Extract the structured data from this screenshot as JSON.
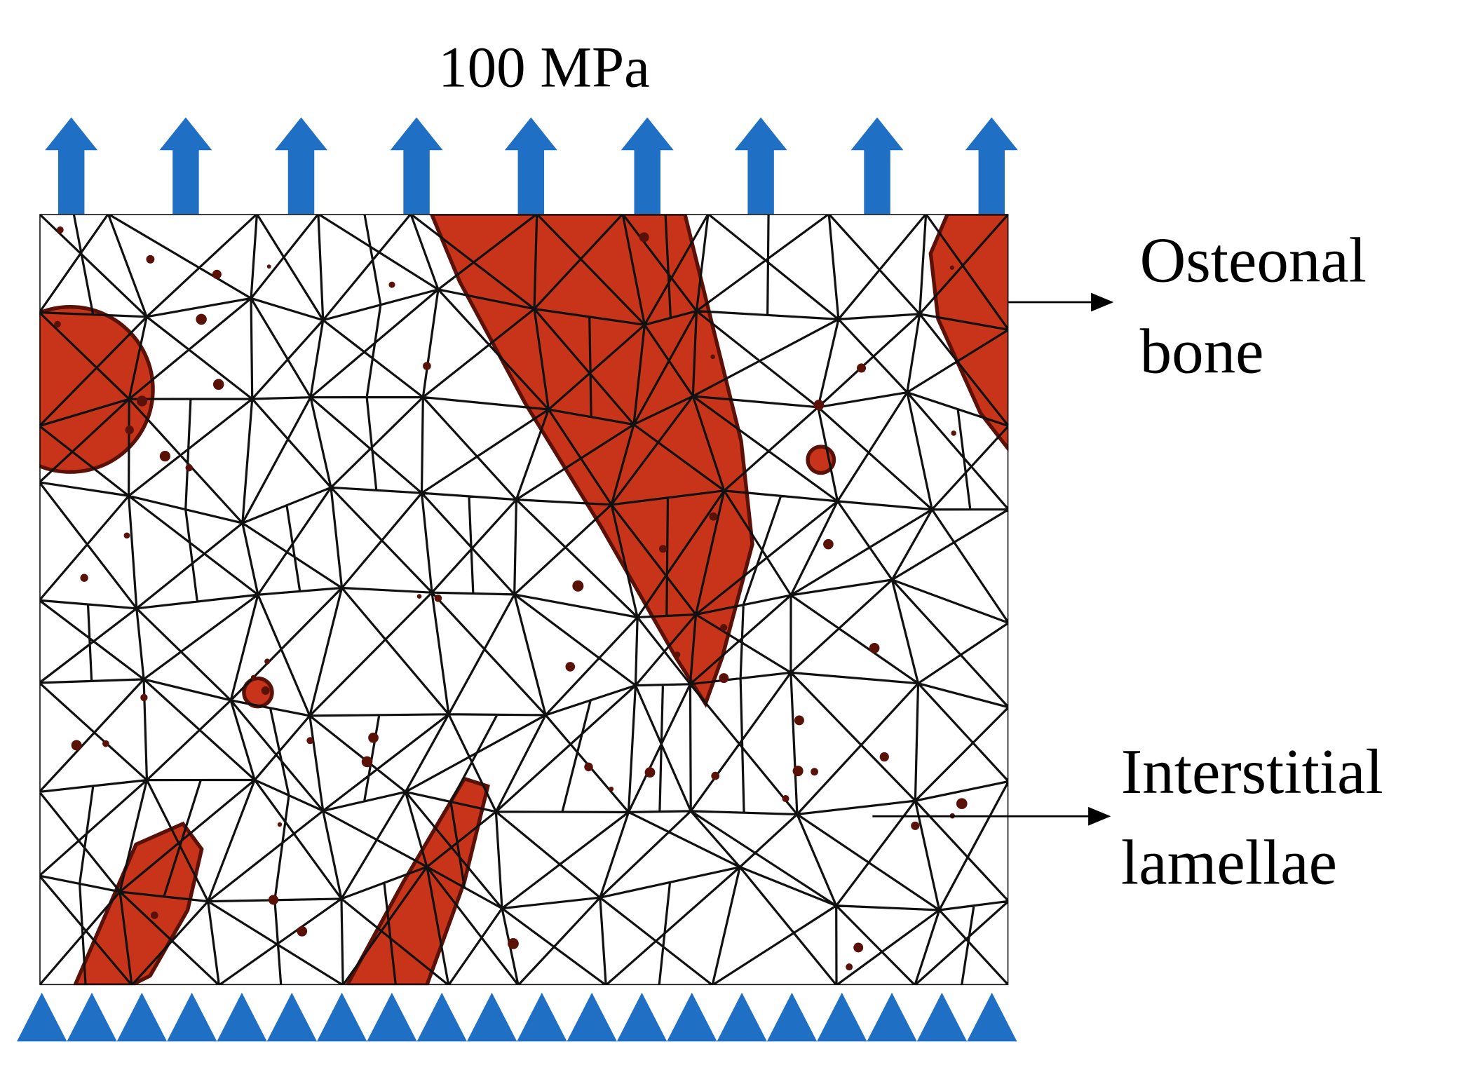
{
  "header": {
    "load": "100 MPa"
  },
  "labels": [
    {
      "lines": [
        "Osteonal",
        "bone"
      ]
    },
    {
      "lines": [
        "Interstitial",
        "lamellae"
      ]
    }
  ]
}
